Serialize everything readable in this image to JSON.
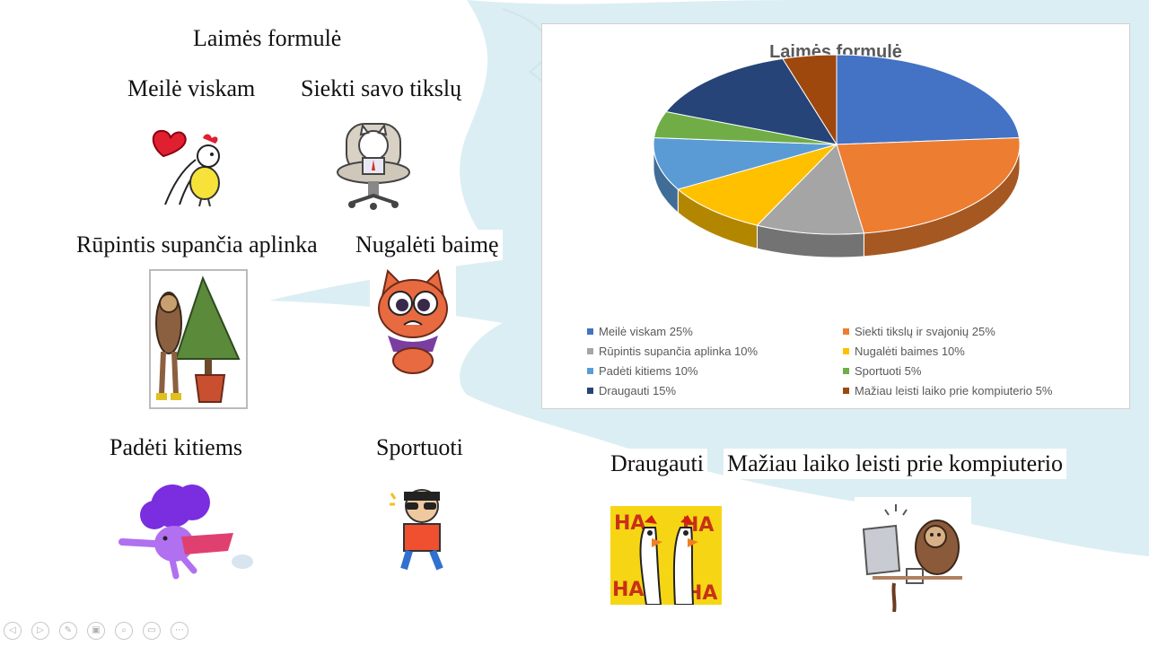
{
  "slide": {
    "title": "Laimės formulė",
    "captions": {
      "meile": "Meilė viskam",
      "siekti": "Siekti savo tikslų",
      "rupintis": "Rūpintis supančia aplinka",
      "nugaleti": "Nugalėti baimę",
      "padeti": "Padėti kitiems",
      "sportuoti": "Sportuoti",
      "draugauti": "Draugauti",
      "maziau": "Mažiau laiko leisti prie kompiuterio"
    },
    "sticker_text": {
      "ha": "HA"
    }
  },
  "colors": {
    "swoosh": "#dbeef3",
    "series": [
      "#4472c4",
      "#ed7d31",
      "#a5a5a5",
      "#ffc000",
      "#5b9bd5",
      "#70ad47",
      "#264478",
      "#9e480e"
    ]
  },
  "chart_data": {
    "type": "pie",
    "style": "3d",
    "title": "Laimės formulė",
    "categories": [
      "Meilė viskam 25%",
      "Siekti tikslų ir svajonių 25%",
      "Rūpintis supančia aplinka 10%",
      "Nugalėti baimes 10%",
      "Padėti kitiems 10%",
      "Sportuoti 5%",
      "Draugauti 15%",
      "Mažiau leisti laiko prie kompiuterio 5%"
    ],
    "values": [
      25,
      25,
      10,
      10,
      10,
      5,
      15,
      5
    ],
    "legend": "bottom"
  },
  "toolbar": {
    "icons": [
      "previous-slide-icon",
      "next-slide-icon",
      "pen-icon",
      "slides-icon",
      "zoom-icon",
      "subtitles-icon",
      "more-icon"
    ],
    "glyphs": [
      "◁",
      "▷",
      "✎",
      "▣",
      "⌕",
      "▭",
      "⋯"
    ]
  }
}
